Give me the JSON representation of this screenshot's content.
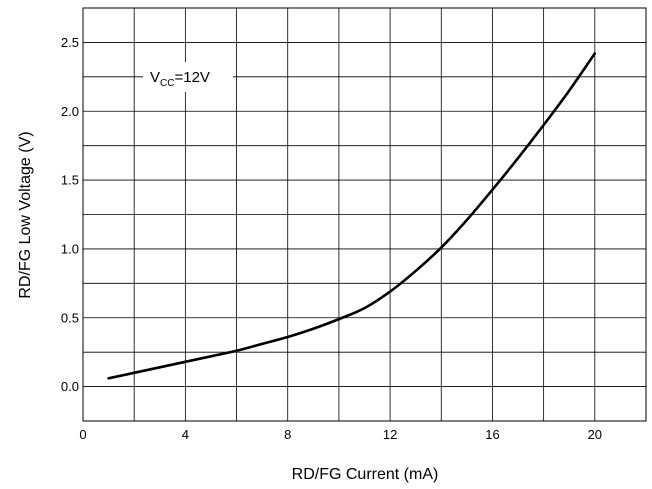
{
  "chart_data": {
    "type": "line",
    "title": "",
    "xlabel": "RD/FG Current (mA)",
    "ylabel": "RD/FG Low Voltage (V)",
    "xlim": [
      0,
      22
    ],
    "ylim": [
      -0.25,
      2.75
    ],
    "x_grid_step": 2,
    "y_grid_step": 0.25,
    "x_ticks": [
      0,
      4,
      8,
      12,
      16,
      20
    ],
    "x_tick_labels": [
      "0",
      "4",
      "8",
      "12",
      "16",
      "20"
    ],
    "y_ticks": [
      0,
      0.5,
      1,
      1.5,
      2,
      2.5
    ],
    "y_tick_labels": [
      "0.0",
      "0.5",
      "1.0",
      "1.5",
      "2.0",
      "2.5"
    ],
    "grid": true,
    "annotation": {
      "main": "V",
      "sub": "CC",
      "suffix": "=12V"
    },
    "series": [
      {
        "color": "#000000",
        "x": [
          1,
          2,
          3,
          4,
          5,
          6,
          7,
          8,
          9,
          10,
          11,
          12,
          13,
          14,
          15,
          16,
          17,
          18,
          19,
          20
        ],
        "y": [
          0.06,
          0.1,
          0.14,
          0.18,
          0.22,
          0.26,
          0.31,
          0.36,
          0.42,
          0.49,
          0.57,
          0.69,
          0.84,
          1.01,
          1.21,
          1.43,
          1.66,
          1.9,
          2.15,
          2.42
        ]
      }
    ]
  }
}
